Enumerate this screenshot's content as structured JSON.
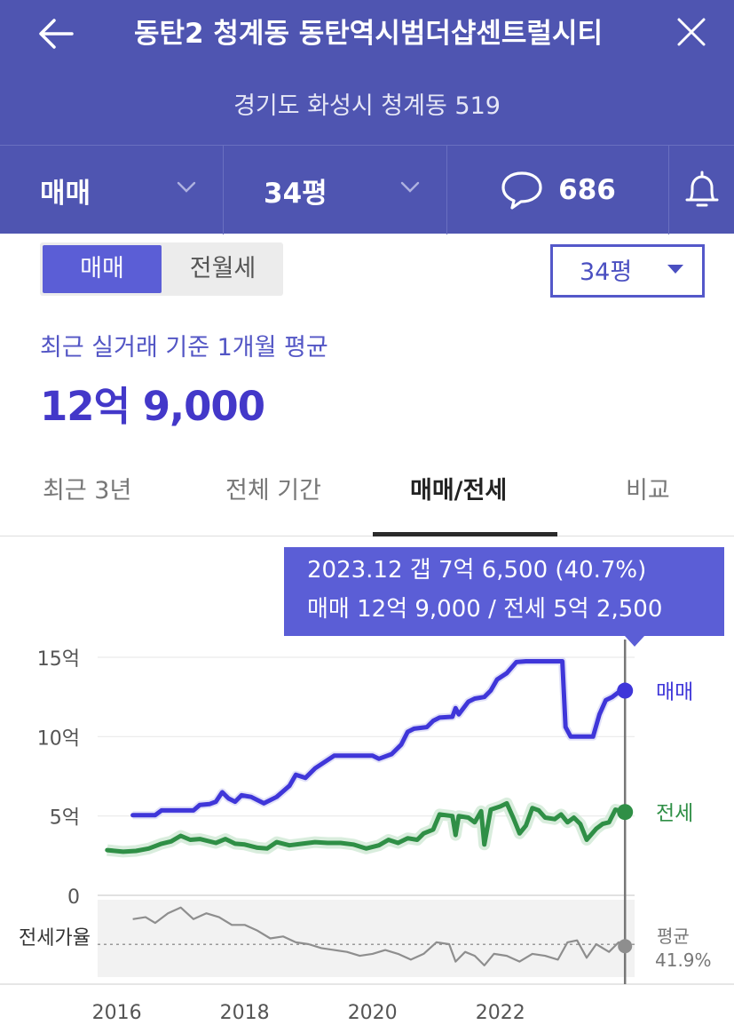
{
  "header": {
    "title": "동탄2 청계동 동탄역시범더샵센트럴시티",
    "address": "경기도 화성시 청계동 519",
    "deal_type": "매매",
    "area": "34평",
    "comment_count": "686",
    "icons": {
      "back": "arrow-left-icon",
      "close": "close-icon",
      "chevron": "chevron-down-icon",
      "comment": "speech-bubble-icon",
      "bell": "bell-icon"
    }
  },
  "segment": {
    "active": "매매",
    "inactive": "전월세"
  },
  "area_dropdown": {
    "label": "34평"
  },
  "summary": {
    "label": "최근 실거래 기준 1개월 평균",
    "price": "12억 9,000"
  },
  "tabs": [
    {
      "label": "최근 3년"
    },
    {
      "label": "전체 기간"
    },
    {
      "label": "매매/전세"
    },
    {
      "label": "비교"
    }
  ],
  "tooltip": {
    "line1": "2023.12  갭 7억 6,500 (40.7%)",
    "line2": "매매 12억 9,000 / 전세 5억 2,500"
  },
  "colors": {
    "header": "#4f55b1",
    "accent": "#5b5ed6",
    "sale": "#3f36d9",
    "jeonse": "#2f8f46",
    "ratio": "#8e8e8e"
  },
  "chart_data": {
    "type": "line",
    "ylim": [
      0,
      15
    ],
    "yticks": [
      {
        "v": 0,
        "label": "0"
      },
      {
        "v": 5,
        "label": "5억"
      },
      {
        "v": 10,
        "label": "10억"
      },
      {
        "v": 15,
        "label": "15억"
      }
    ],
    "xticks": [
      {
        "v": 2016,
        "label": "2016"
      },
      {
        "v": 2018,
        "label": "2018"
      },
      {
        "v": 2020,
        "label": "2020"
      },
      {
        "v": 2022,
        "label": "2022"
      }
    ],
    "xlim": [
      2015.7,
      2024.1
    ],
    "cursor_x": 2023.95,
    "series": [
      {
        "name": "매매",
        "end_label": "매매",
        "points": [
          [
            2016.25,
            5.05
          ],
          [
            2016.6,
            5.05
          ],
          [
            2016.7,
            5.35
          ],
          [
            2017.2,
            5.35
          ],
          [
            2017.3,
            5.7
          ],
          [
            2017.45,
            5.75
          ],
          [
            2017.55,
            5.9
          ],
          [
            2017.65,
            6.5
          ],
          [
            2017.75,
            6.1
          ],
          [
            2017.85,
            5.9
          ],
          [
            2017.95,
            6.3
          ],
          [
            2018.1,
            6.2
          ],
          [
            2018.3,
            5.8
          ],
          [
            2018.5,
            6.2
          ],
          [
            2018.7,
            6.9
          ],
          [
            2018.8,
            7.6
          ],
          [
            2018.95,
            7.4
          ],
          [
            2019.1,
            8.0
          ],
          [
            2019.25,
            8.4
          ],
          [
            2019.4,
            8.8
          ],
          [
            2019.7,
            8.8
          ],
          [
            2020.0,
            8.8
          ],
          [
            2020.1,
            8.6
          ],
          [
            2020.3,
            8.9
          ],
          [
            2020.45,
            9.5
          ],
          [
            2020.55,
            10.3
          ],
          [
            2020.65,
            10.5
          ],
          [
            2020.85,
            10.6
          ],
          [
            2020.95,
            11.0
          ],
          [
            2021.05,
            11.2
          ],
          [
            2021.25,
            11.25
          ],
          [
            2021.3,
            11.8
          ],
          [
            2021.35,
            11.4
          ],
          [
            2021.5,
            12.2
          ],
          [
            2021.6,
            12.4
          ],
          [
            2021.75,
            12.5
          ],
          [
            2021.85,
            12.9
          ],
          [
            2021.95,
            13.6
          ],
          [
            2022.1,
            14.0
          ],
          [
            2022.25,
            14.7
          ],
          [
            2022.4,
            14.75
          ],
          [
            2022.9,
            14.75
          ],
          [
            2022.97,
            14.75
          ],
          [
            2023.02,
            10.6
          ],
          [
            2023.1,
            10.0
          ],
          [
            2023.45,
            10.0
          ],
          [
            2023.55,
            11.4
          ],
          [
            2023.65,
            12.3
          ],
          [
            2023.75,
            12.5
          ],
          [
            2023.85,
            12.8
          ],
          [
            2023.95,
            12.9
          ]
        ]
      },
      {
        "name": "전세",
        "end_label": "전세",
        "points": [
          [
            2015.85,
            2.85
          ],
          [
            2016.1,
            2.75
          ],
          [
            2016.3,
            2.8
          ],
          [
            2016.5,
            2.95
          ],
          [
            2016.7,
            3.25
          ],
          [
            2016.85,
            3.4
          ],
          [
            2017.0,
            3.75
          ],
          [
            2017.15,
            3.5
          ],
          [
            2017.3,
            3.55
          ],
          [
            2017.55,
            3.3
          ],
          [
            2017.7,
            3.55
          ],
          [
            2017.85,
            3.25
          ],
          [
            2018.0,
            3.2
          ],
          [
            2018.2,
            3.0
          ],
          [
            2018.35,
            2.95
          ],
          [
            2018.5,
            3.35
          ],
          [
            2018.7,
            3.15
          ],
          [
            2018.9,
            3.25
          ],
          [
            2019.1,
            3.35
          ],
          [
            2019.3,
            3.3
          ],
          [
            2019.5,
            3.3
          ],
          [
            2019.7,
            3.2
          ],
          [
            2019.9,
            2.95
          ],
          [
            2020.1,
            3.15
          ],
          [
            2020.25,
            3.5
          ],
          [
            2020.4,
            3.3
          ],
          [
            2020.55,
            3.6
          ],
          [
            2020.7,
            3.5
          ],
          [
            2020.8,
            3.9
          ],
          [
            2020.95,
            4.15
          ],
          [
            2021.05,
            5.1
          ],
          [
            2021.25,
            5.0
          ],
          [
            2021.3,
            3.8
          ],
          [
            2021.35,
            5.0
          ],
          [
            2021.5,
            4.9
          ],
          [
            2021.6,
            4.6
          ],
          [
            2021.7,
            5.3
          ],
          [
            2021.75,
            3.2
          ],
          [
            2021.85,
            5.4
          ],
          [
            2022.0,
            5.6
          ],
          [
            2022.1,
            5.8
          ],
          [
            2022.2,
            4.9
          ],
          [
            2022.3,
            3.9
          ],
          [
            2022.4,
            4.4
          ],
          [
            2022.5,
            5.5
          ],
          [
            2022.6,
            5.35
          ],
          [
            2022.7,
            4.9
          ],
          [
            2022.85,
            4.8
          ],
          [
            2022.95,
            5.1
          ],
          [
            2023.05,
            4.6
          ],
          [
            2023.15,
            4.9
          ],
          [
            2023.25,
            4.5
          ],
          [
            2023.35,
            3.5
          ],
          [
            2023.5,
            4.2
          ],
          [
            2023.6,
            4.5
          ],
          [
            2023.7,
            4.6
          ],
          [
            2023.8,
            5.4
          ],
          [
            2023.9,
            5.3
          ],
          [
            2023.95,
            5.25
          ]
        ]
      },
      {
        "name": "전세가율",
        "axis_label": "전세가율",
        "end_label_1": "평균",
        "end_label_2": "41.9%",
        "points": [
          [
            2016.25,
            55
          ],
          [
            2016.45,
            56
          ],
          [
            2016.6,
            53
          ],
          [
            2016.8,
            58
          ],
          [
            2017.0,
            61
          ],
          [
            2017.2,
            55
          ],
          [
            2017.4,
            58
          ],
          [
            2017.6,
            56
          ],
          [
            2017.8,
            52
          ],
          [
            2018.0,
            52
          ],
          [
            2018.2,
            49
          ],
          [
            2018.4,
            45
          ],
          [
            2018.6,
            46
          ],
          [
            2018.8,
            43
          ],
          [
            2019.0,
            42
          ],
          [
            2019.2,
            40
          ],
          [
            2019.4,
            39
          ],
          [
            2019.6,
            38
          ],
          [
            2019.8,
            36
          ],
          [
            2020.0,
            37
          ],
          [
            2020.2,
            39
          ],
          [
            2020.4,
            37
          ],
          [
            2020.6,
            34
          ],
          [
            2020.8,
            37
          ],
          [
            2021.0,
            43
          ],
          [
            2021.2,
            42
          ],
          [
            2021.3,
            33
          ],
          [
            2021.45,
            38
          ],
          [
            2021.6,
            36
          ],
          [
            2021.75,
            31
          ],
          [
            2021.9,
            37
          ],
          [
            2022.1,
            36
          ],
          [
            2022.3,
            33
          ],
          [
            2022.5,
            37
          ],
          [
            2022.7,
            36
          ],
          [
            2022.9,
            34
          ],
          [
            2023.05,
            43
          ],
          [
            2023.2,
            44
          ],
          [
            2023.35,
            35
          ],
          [
            2023.5,
            42
          ],
          [
            2023.7,
            38
          ],
          [
            2023.85,
            43
          ],
          [
            2023.95,
            41
          ]
        ],
        "avg": 41.9
      }
    ]
  }
}
